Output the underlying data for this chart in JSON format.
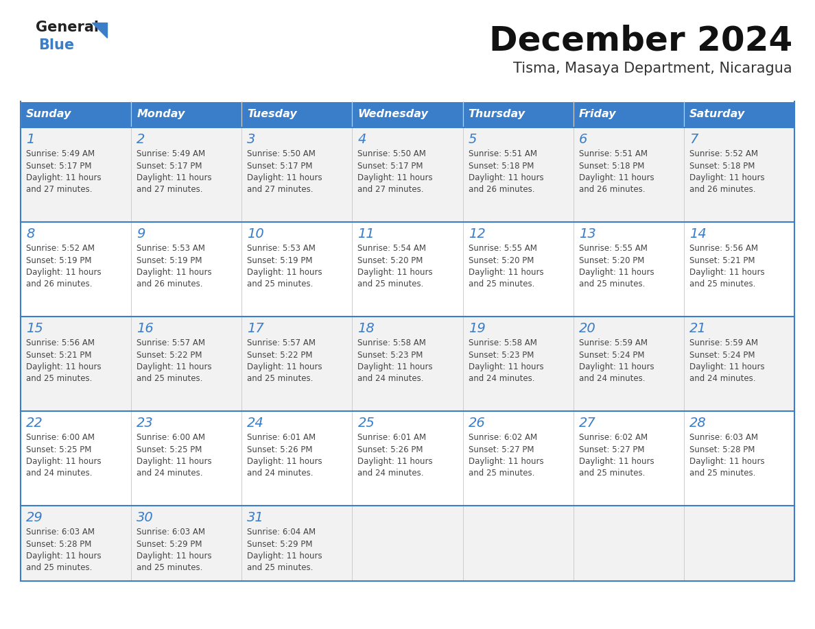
{
  "title": "December 2024",
  "subtitle": "Tisma, Masaya Department, Nicaragua",
  "days_of_week": [
    "Sunday",
    "Monday",
    "Tuesday",
    "Wednesday",
    "Thursday",
    "Friday",
    "Saturday"
  ],
  "header_bg": "#3A7DC9",
  "header_text": "#FFFFFF",
  "row_bg_odd": "#F2F2F2",
  "row_bg_even": "#FFFFFF",
  "cell_border": "#3A7DC9",
  "day_num_color": "#3A7DC9",
  "text_color": "#444444",
  "logo_general_color": "#222222",
  "logo_blue_color": "#3A7DC9",
  "weeks": [
    [
      {
        "day": 1,
        "sunrise": "5:49 AM",
        "sunset": "5:17 PM",
        "daylight": "11 hours and 27 minutes."
      },
      {
        "day": 2,
        "sunrise": "5:49 AM",
        "sunset": "5:17 PM",
        "daylight": "11 hours and 27 minutes."
      },
      {
        "day": 3,
        "sunrise": "5:50 AM",
        "sunset": "5:17 PM",
        "daylight": "11 hours and 27 minutes."
      },
      {
        "day": 4,
        "sunrise": "5:50 AM",
        "sunset": "5:17 PM",
        "daylight": "11 hours and 27 minutes."
      },
      {
        "day": 5,
        "sunrise": "5:51 AM",
        "sunset": "5:18 PM",
        "daylight": "11 hours and 26 minutes."
      },
      {
        "day": 6,
        "sunrise": "5:51 AM",
        "sunset": "5:18 PM",
        "daylight": "11 hours and 26 minutes."
      },
      {
        "day": 7,
        "sunrise": "5:52 AM",
        "sunset": "5:18 PM",
        "daylight": "11 hours and 26 minutes."
      }
    ],
    [
      {
        "day": 8,
        "sunrise": "5:52 AM",
        "sunset": "5:19 PM",
        "daylight": "11 hours and 26 minutes."
      },
      {
        "day": 9,
        "sunrise": "5:53 AM",
        "sunset": "5:19 PM",
        "daylight": "11 hours and 26 minutes."
      },
      {
        "day": 10,
        "sunrise": "5:53 AM",
        "sunset": "5:19 PM",
        "daylight": "11 hours and 25 minutes."
      },
      {
        "day": 11,
        "sunrise": "5:54 AM",
        "sunset": "5:20 PM",
        "daylight": "11 hours and 25 minutes."
      },
      {
        "day": 12,
        "sunrise": "5:55 AM",
        "sunset": "5:20 PM",
        "daylight": "11 hours and 25 minutes."
      },
      {
        "day": 13,
        "sunrise": "5:55 AM",
        "sunset": "5:20 PM",
        "daylight": "11 hours and 25 minutes."
      },
      {
        "day": 14,
        "sunrise": "5:56 AM",
        "sunset": "5:21 PM",
        "daylight": "11 hours and 25 minutes."
      }
    ],
    [
      {
        "day": 15,
        "sunrise": "5:56 AM",
        "sunset": "5:21 PM",
        "daylight": "11 hours and 25 minutes."
      },
      {
        "day": 16,
        "sunrise": "5:57 AM",
        "sunset": "5:22 PM",
        "daylight": "11 hours and 25 minutes."
      },
      {
        "day": 17,
        "sunrise": "5:57 AM",
        "sunset": "5:22 PM",
        "daylight": "11 hours and 25 minutes."
      },
      {
        "day": 18,
        "sunrise": "5:58 AM",
        "sunset": "5:23 PM",
        "daylight": "11 hours and 24 minutes."
      },
      {
        "day": 19,
        "sunrise": "5:58 AM",
        "sunset": "5:23 PM",
        "daylight": "11 hours and 24 minutes."
      },
      {
        "day": 20,
        "sunrise": "5:59 AM",
        "sunset": "5:24 PM",
        "daylight": "11 hours and 24 minutes."
      },
      {
        "day": 21,
        "sunrise": "5:59 AM",
        "sunset": "5:24 PM",
        "daylight": "11 hours and 24 minutes."
      }
    ],
    [
      {
        "day": 22,
        "sunrise": "6:00 AM",
        "sunset": "5:25 PM",
        "daylight": "11 hours and 24 minutes."
      },
      {
        "day": 23,
        "sunrise": "6:00 AM",
        "sunset": "5:25 PM",
        "daylight": "11 hours and 24 minutes."
      },
      {
        "day": 24,
        "sunrise": "6:01 AM",
        "sunset": "5:26 PM",
        "daylight": "11 hours and 24 minutes."
      },
      {
        "day": 25,
        "sunrise": "6:01 AM",
        "sunset": "5:26 PM",
        "daylight": "11 hours and 24 minutes."
      },
      {
        "day": 26,
        "sunrise": "6:02 AM",
        "sunset": "5:27 PM",
        "daylight": "11 hours and 25 minutes."
      },
      {
        "day": 27,
        "sunrise": "6:02 AM",
        "sunset": "5:27 PM",
        "daylight": "11 hours and 25 minutes."
      },
      {
        "day": 28,
        "sunrise": "6:03 AM",
        "sunset": "5:28 PM",
        "daylight": "11 hours and 25 minutes."
      }
    ],
    [
      {
        "day": 29,
        "sunrise": "6:03 AM",
        "sunset": "5:28 PM",
        "daylight": "11 hours and 25 minutes."
      },
      {
        "day": 30,
        "sunrise": "6:03 AM",
        "sunset": "5:29 PM",
        "daylight": "11 hours and 25 minutes."
      },
      {
        "day": 31,
        "sunrise": "6:04 AM",
        "sunset": "5:29 PM",
        "daylight": "11 hours and 25 minutes."
      },
      null,
      null,
      null,
      null
    ]
  ]
}
